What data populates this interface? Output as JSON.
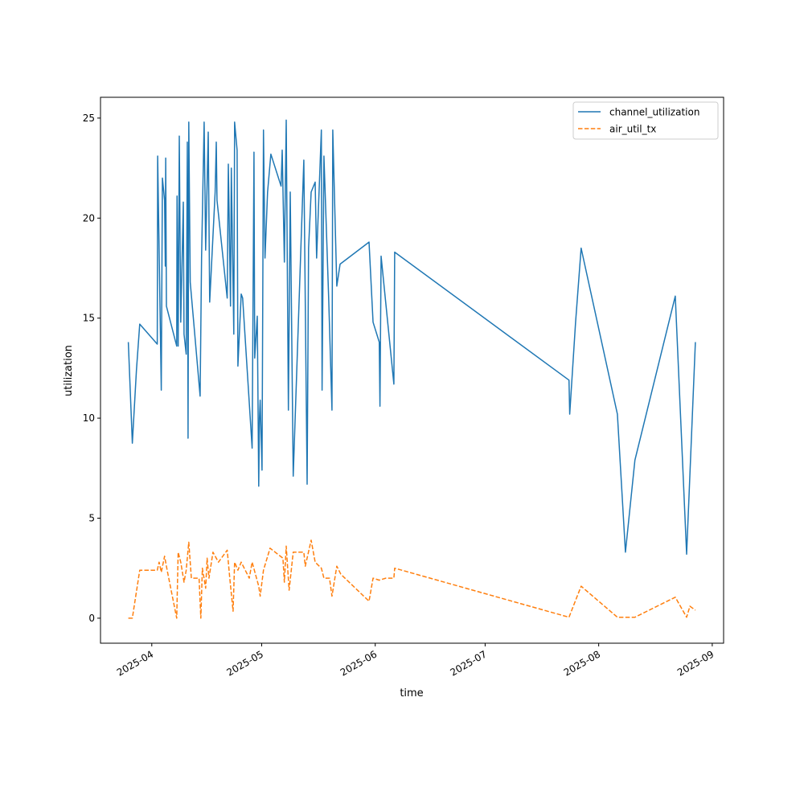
{
  "chart_data": {
    "type": "line",
    "title": "",
    "xlabel": "time",
    "ylabel": "utilization",
    "x_units": "days since 2025-04-01",
    "xlim": [
      -14.0,
      156.1
    ],
    "ylim": [
      -1.25,
      26.04
    ],
    "grid": false,
    "legend_position": "top-right",
    "x_ticks": [
      {
        "value": 0,
        "label": "2025-04"
      },
      {
        "value": 30,
        "label": "2025-05"
      },
      {
        "value": 61,
        "label": "2025-06"
      },
      {
        "value": 91,
        "label": "2025-07"
      },
      {
        "value": 122,
        "label": "2025-08"
      },
      {
        "value": 153,
        "label": "2025-09"
      }
    ],
    "y_ticks": [
      {
        "value": 0,
        "label": "0"
      },
      {
        "value": 5,
        "label": "5"
      },
      {
        "value": 10,
        "label": "10"
      },
      {
        "value": 15,
        "label": "15"
      },
      {
        "value": 20,
        "label": "20"
      },
      {
        "value": 25,
        "label": "25"
      }
    ],
    "series": [
      {
        "name": "channel_utilization",
        "color": "#1f77b4",
        "style": "solid",
        "x": [
          -6.4,
          -5.3,
          -4.2,
          -3.3,
          1.5,
          1.6,
          2.6,
          2.9,
          3.5,
          3.7,
          3.8,
          4.0,
          6.8,
          6.9,
          7.2,
          7.5,
          7.9,
          8.6,
          8.8,
          9.4,
          9.7,
          9.9,
          10.1,
          10.5,
          13.2,
          13.6,
          14.3,
          14.7,
          15.4,
          15.8,
          17.3,
          17.6,
          17.8,
          20.6,
          20.9,
          21.5,
          21.7,
          22.4,
          22.6,
          23.3,
          23.5,
          24.4,
          24.8,
          27.4,
          27.9,
          28.1,
          28.8,
          29.2,
          29.4,
          29.6,
          30.1,
          30.5,
          30.9,
          31.6,
          32.5,
          35.3,
          35.6,
          36.2,
          36.7,
          37.3,
          37.8,
          38.6,
          41.5,
          42.4,
          42.8,
          43.5,
          44.6,
          45.0,
          46.3,
          46.5,
          47.0,
          48.3,
          49.2,
          49.4,
          50.5,
          51.4,
          59.3,
          60.4,
          62.1,
          62.3,
          62.6,
          66.1,
          66.3,
          113.9,
          114.1,
          115.7,
          117.2,
          127.1,
          129.3,
          131.9,
          142.9,
          146.0,
          148.4
        ],
        "y": [
          13.8,
          8.75,
          12.4,
          14.7,
          13.7,
          23.1,
          11.4,
          22.0,
          20.9,
          17.6,
          23.0,
          15.6,
          13.6,
          21.1,
          13.6,
          24.1,
          14.8,
          20.8,
          14.2,
          13.2,
          23.8,
          9.0,
          24.8,
          16.8,
          11.1,
          18.0,
          24.8,
          18.4,
          24.3,
          15.8,
          21.3,
          23.8,
          20.9,
          16.0,
          22.7,
          15.6,
          22.5,
          14.2,
          24.8,
          23.4,
          12.6,
          16.2,
          16.0,
          8.5,
          23.3,
          13.0,
          15.1,
          6.6,
          10.0,
          10.9,
          7.4,
          24.4,
          18.0,
          21.3,
          23.2,
          21.6,
          23.4,
          17.8,
          24.9,
          10.4,
          21.3,
          7.1,
          22.9,
          6.7,
          18.5,
          21.3,
          21.8,
          18.0,
          24.4,
          11.4,
          23.1,
          16.0,
          10.4,
          24.4,
          16.6,
          17.7,
          18.8,
          14.8,
          13.8,
          10.6,
          18.1,
          11.7,
          18.3,
          11.9,
          10.2,
          14.8,
          18.5,
          10.2,
          3.3,
          7.9,
          16.1,
          3.2,
          13.8
        ]
      },
      {
        "name": "air_util_tx",
        "color": "#ff7f0e",
        "style": "dashed",
        "x": [
          -6.4,
          -5.3,
          -3.3,
          1.5,
          2.0,
          2.6,
          3.5,
          4.2,
          6.8,
          7.2,
          7.9,
          8.8,
          9.4,
          10.1,
          10.8,
          12.9,
          13.4,
          13.8,
          14.7,
          15.1,
          15.6,
          16.7,
          18.2,
          20.6,
          21.3,
          22.2,
          22.6,
          23.5,
          24.4,
          26.6,
          27.4,
          29.2,
          29.6,
          30.5,
          32.3,
          35.8,
          36.2,
          36.7,
          37.5,
          38.6,
          41.5,
          41.9,
          43.5,
          44.6,
          46.3,
          47.0,
          48.5,
          49.2,
          50.5,
          51.6,
          59.3,
          60.4,
          62.1,
          63.9,
          66.1,
          66.3,
          113.9,
          117.2,
          127.1,
          131.9,
          142.9,
          146.0,
          146.9,
          148.4
        ],
        "y": [
          0,
          0,
          2.4,
          2.4,
          2.8,
          2.3,
          3.1,
          2.4,
          0,
          3.3,
          2.8,
          1.8,
          2.4,
          3.8,
          2.0,
          2.0,
          0,
          2.5,
          1.5,
          3.0,
          2.0,
          3.3,
          2.8,
          3.4,
          2.0,
          0.35,
          2.8,
          2.4,
          2.8,
          2.0,
          2.8,
          1.6,
          1.1,
          2.4,
          3.5,
          3.0,
          1.8,
          3.6,
          1.4,
          3.3,
          3.3,
          2.6,
          3.9,
          2.8,
          2.5,
          2.0,
          2.0,
          1.1,
          2.6,
          2.2,
          0.85,
          2.0,
          1.9,
          2.0,
          2.0,
          2.5,
          0.05,
          1.6,
          0.05,
          0.05,
          1.05,
          0.05,
          0.6,
          0.4
        ]
      }
    ]
  }
}
